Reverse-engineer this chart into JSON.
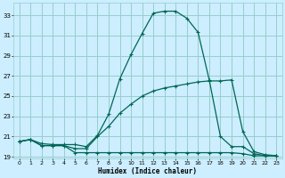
{
  "xlabel": "Humidex (Indice chaleur)",
  "bg_color": "#cceeff",
  "grid_color": "#99cccc",
  "line_color": "#006655",
  "xlim": [
    -0.5,
    23.5
  ],
  "ylim": [
    18.8,
    34.2
  ],
  "yticks": [
    19,
    21,
    23,
    25,
    27,
    29,
    31,
    33
  ],
  "xticks": [
    0,
    1,
    2,
    3,
    4,
    5,
    6,
    7,
    8,
    9,
    10,
    11,
    12,
    13,
    14,
    15,
    16,
    17,
    18,
    19,
    20,
    21,
    22,
    23
  ],
  "series1_x": [
    0,
    1,
    2,
    3,
    4,
    5,
    6,
    7,
    8,
    9,
    10,
    11,
    12,
    13,
    14,
    15,
    16,
    17,
    18,
    19,
    20,
    21,
    22,
    23
  ],
  "series1_y": [
    20.5,
    20.7,
    20.3,
    20.2,
    20.2,
    20.2,
    20.0,
    21.1,
    23.2,
    26.7,
    29.1,
    31.2,
    33.2,
    33.4,
    33.4,
    32.7,
    31.3,
    26.6,
    21.0,
    20.0,
    20.0,
    19.3,
    19.1,
    19.1
  ],
  "series2_x": [
    0,
    1,
    2,
    3,
    4,
    5,
    6,
    7,
    8,
    9,
    10,
    11,
    12,
    13,
    14,
    15,
    16,
    17,
    18,
    19,
    20,
    21,
    22,
    23
  ],
  "series2_y": [
    20.5,
    20.7,
    20.1,
    20.1,
    20.1,
    19.4,
    19.4,
    19.4,
    19.4,
    19.4,
    19.4,
    19.4,
    19.4,
    19.4,
    19.4,
    19.4,
    19.4,
    19.4,
    19.4,
    19.4,
    19.3,
    19.1,
    19.1,
    19.1
  ],
  "series3_x": [
    0,
    1,
    2,
    3,
    4,
    5,
    6,
    7,
    8,
    9,
    10,
    11,
    12,
    13,
    14,
    15,
    16,
    17,
    18,
    19,
    20,
    21,
    22,
    23
  ],
  "series3_y": [
    20.5,
    20.7,
    20.1,
    20.1,
    20.1,
    19.8,
    19.8,
    21.0,
    22.0,
    23.3,
    24.2,
    25.0,
    25.5,
    25.8,
    26.0,
    26.2,
    26.4,
    26.5,
    26.5,
    26.6,
    21.5,
    19.5,
    19.2,
    19.1
  ]
}
